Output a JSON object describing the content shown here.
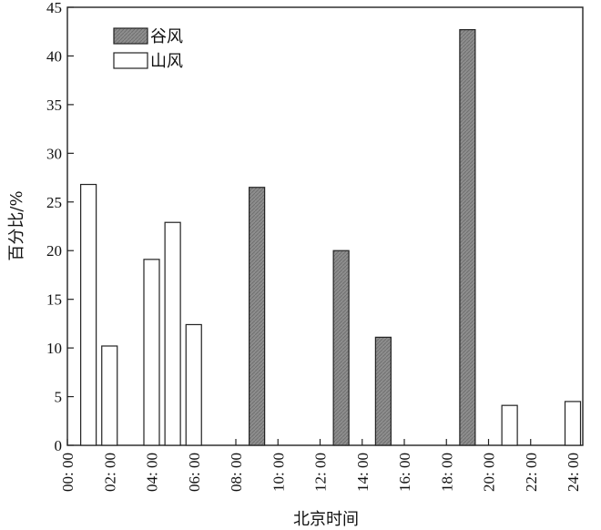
{
  "chart_data": {
    "type": "bar",
    "xlabel": "北京时间",
    "ylabel": "百分比/%",
    "ylim": [
      0,
      45
    ],
    "y_ticks": [
      0,
      5,
      10,
      15,
      20,
      25,
      30,
      35,
      40,
      45
    ],
    "x_range": [
      0,
      24
    ],
    "x_ticks": [
      "00: 00",
      "02: 00",
      "04: 00",
      "06: 00",
      "08: 00",
      "10: 00",
      "12: 00",
      "14: 00",
      "16: 00",
      "18: 00",
      "20: 00",
      "22: 00",
      "24: 00"
    ],
    "grid": false,
    "legend_position": "top-left",
    "series": [
      {
        "name": "谷风",
        "color": "#8c8c8c",
        "x": [
          9,
          13,
          15,
          19
        ],
        "values": [
          26.5,
          20.0,
          11.1,
          42.7
        ]
      },
      {
        "name": "山风",
        "color": "#ffffff",
        "x": [
          1,
          2,
          4,
          5,
          6,
          21,
          24
        ],
        "values": [
          26.8,
          10.2,
          19.1,
          22.9,
          12.4,
          4.1,
          4.5
        ]
      }
    ]
  }
}
